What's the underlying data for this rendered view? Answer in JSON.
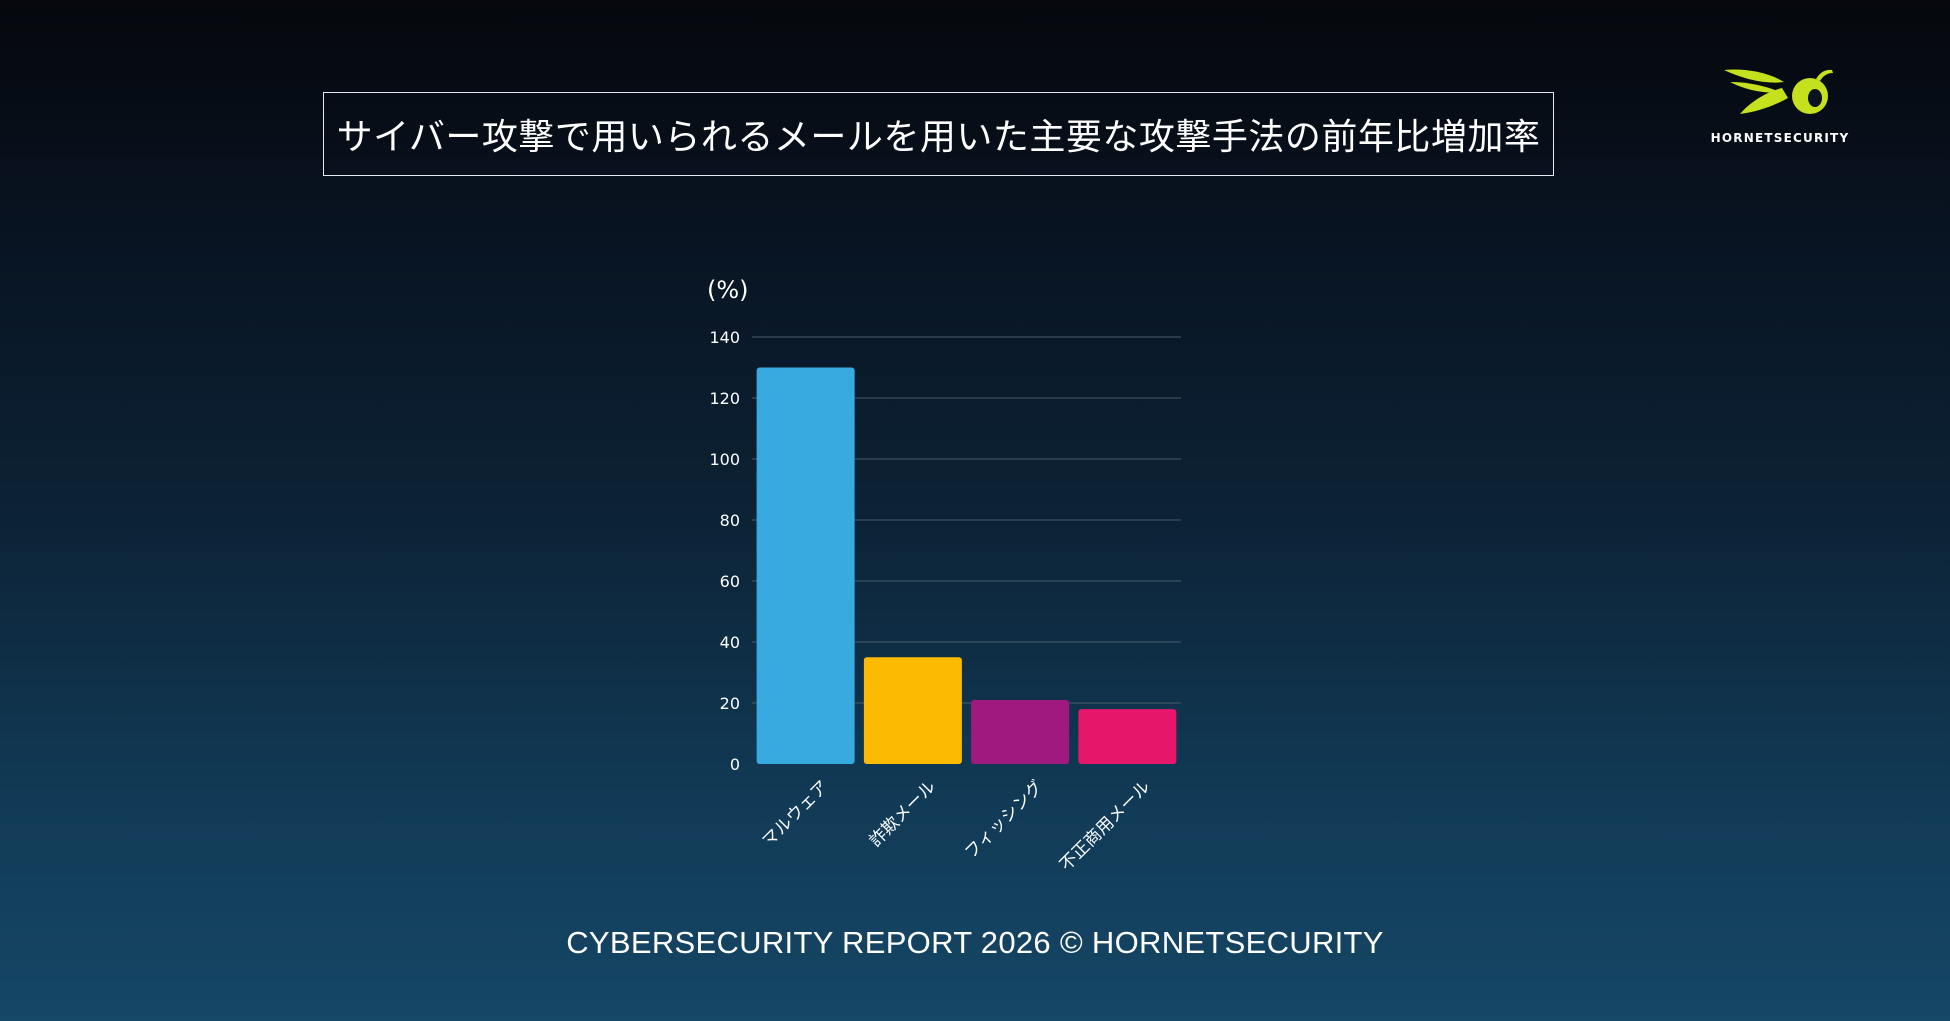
{
  "header": {
    "title": "サイバー攻撃で用いられるメールを用いた主要な攻撃手法の前年比増加率"
  },
  "logo": {
    "name": "HORNETSECURITY",
    "color": "#c5e01d"
  },
  "chart_data": {
    "type": "bar",
    "title": "サイバー攻撃で用いられるメールを用いた主要な攻撃手法の前年比増加率",
    "ylabel": "(%)",
    "xlabel": "",
    "ylim": [
      0,
      140
    ],
    "yticks": [
      0,
      20,
      40,
      60,
      80,
      100,
      120,
      140
    ],
    "grid": true,
    "categories": [
      "マルウェア",
      "詐欺メール",
      "フィッシング",
      "不正商用メール"
    ],
    "values": [
      130,
      35,
      21,
      18
    ],
    "colors": [
      "#38aadf",
      "#fcbb00",
      "#a0197f",
      "#e6166a"
    ]
  },
  "footer": {
    "text": "CYBERSECURITY REPORT 2026 © HORNETSECURITY"
  }
}
